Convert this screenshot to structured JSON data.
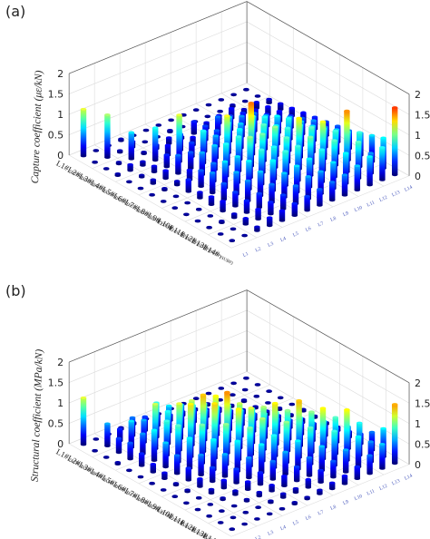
{
  "chart_data": [
    {
      "type": "bar3d",
      "panel_label": "(a)",
      "zlabel_left": "Capture coefficient (με/kN)",
      "zlabel_right": "Capture coefficient (με/kN)",
      "zlim": [
        0,
        2
      ],
      "zticks": [
        "0",
        "0.5",
        "1",
        "1.5",
        "2"
      ],
      "rows": [
        "L1#",
        "L2#",
        "L3#",
        "L4#",
        "L5#",
        "L6#",
        "L7#",
        "L8#",
        "L9#",
        "L10#",
        "L11#",
        "L12#",
        "L13#",
        "L14#"
      ],
      "row_sub": "(SUBP)",
      "columns": [
        "L1",
        "L2",
        "L3",
        "L4",
        "L5",
        "L6",
        "L7",
        "L8",
        "L9",
        "L10",
        "L11",
        "L12",
        "L13",
        "L14"
      ],
      "values": [
        [
          1.15,
          0.02,
          0.02,
          0.05,
          0.02,
          0.02,
          0.02,
          0.02,
          0.02,
          0.02,
          0.02,
          0.02,
          0.02,
          0.02
        ],
        [
          0.02,
          1.05,
          0.05,
          0.15,
          0.02,
          0.02,
          0.05,
          0.02,
          0.02,
          0.02,
          0.02,
          0.05,
          0.02,
          0.02
        ],
        [
          0.02,
          0.05,
          0.65,
          0.05,
          0.1,
          0.15,
          0.05,
          0.3,
          0.15,
          0.2,
          0.25,
          0.1,
          0.15,
          0.1
        ],
        [
          0.05,
          0.15,
          0.1,
          0.8,
          0.25,
          0.4,
          0.2,
          0.35,
          0.45,
          0.35,
          0.3,
          0.25,
          0.2,
          0.15
        ],
        [
          0.02,
          0.05,
          0.15,
          0.3,
          1.15,
          0.35,
          0.5,
          0.4,
          0.6,
          0.5,
          0.45,
          0.3,
          0.25,
          0.2
        ],
        [
          0.02,
          0.1,
          0.2,
          0.45,
          0.4,
          0.8,
          0.55,
          0.75,
          0.6,
          0.65,
          0.55,
          0.4,
          0.3,
          0.25
        ],
        [
          0.02,
          0.05,
          0.1,
          0.25,
          0.55,
          0.6,
          1.2,
          0.75,
          0.95,
          0.8,
          0.7,
          0.55,
          0.4,
          0.3
        ],
        [
          0.02,
          0.02,
          0.3,
          0.4,
          0.45,
          0.8,
          0.85,
          1.55,
          0.9,
          0.75,
          0.8,
          0.6,
          0.5,
          0.35
        ],
        [
          0.02,
          0.02,
          0.15,
          0.5,
          0.65,
          0.65,
          1.0,
          0.95,
          1.0,
          0.85,
          0.8,
          0.65,
          0.5,
          0.4
        ],
        [
          0.02,
          0.02,
          0.2,
          0.4,
          0.55,
          0.7,
          0.85,
          0.8,
          0.9,
          1.25,
          0.9,
          0.75,
          0.6,
          0.45
        ],
        [
          0.02,
          0.02,
          0.25,
          0.35,
          0.5,
          0.6,
          0.75,
          0.85,
          0.85,
          0.95,
          1.2,
          0.85,
          0.7,
          0.55
        ],
        [
          0.02,
          0.05,
          0.1,
          0.3,
          0.35,
          0.45,
          0.6,
          0.65,
          0.7,
          0.8,
          0.9,
          1.5,
          0.85,
          0.65
        ],
        [
          0.02,
          0.02,
          0.15,
          0.25,
          0.3,
          0.35,
          0.45,
          0.55,
          0.55,
          0.65,
          0.75,
          0.9,
          0.5,
          0.75
        ],
        [
          0.02,
          0.02,
          0.1,
          0.2,
          0.25,
          0.3,
          0.35,
          0.4,
          0.45,
          0.5,
          0.6,
          0.7,
          0.8,
          1.65
        ]
      ]
    },
    {
      "type": "bar3d",
      "panel_label": "(b)",
      "zlabel_left": "Structural coefficient (MPa/kN)",
      "zlabel_right": "Structural coefficient (MPa/kN)",
      "zlim": [
        0,
        2
      ],
      "zticks": [
        "0",
        "0.5",
        "1",
        "1.5",
        "2"
      ],
      "rows": [
        "L1#",
        "L2#",
        "L3#",
        "L4#",
        "L5#",
        "L6#",
        "L7#",
        "L8#",
        "L9#",
        "L10#",
        "L11#",
        "L12#",
        "L13#",
        "L14#"
      ],
      "row_sub": "(STRU)",
      "columns": [
        "L1",
        "L2",
        "L3",
        "L4",
        "L5",
        "L6",
        "L7",
        "L8",
        "L9",
        "L10",
        "L11",
        "L12",
        "L13",
        "L14"
      ],
      "values": [
        [
          1.15,
          0.02,
          0.02,
          0.05,
          0.05,
          0.02,
          0.02,
          0.02,
          0.02,
          0.02,
          0.02,
          0.02,
          0.02,
          0.02
        ],
        [
          0.02,
          0.55,
          0.3,
          0.45,
          0.35,
          0.25,
          0.15,
          0.1,
          0.05,
          0.05,
          0.02,
          0.02,
          0.02,
          0.02
        ],
        [
          0.02,
          0.35,
          0.65,
          0.55,
          0.85,
          0.65,
          0.55,
          0.3,
          0.2,
          0.1,
          0.05,
          0.05,
          0.02,
          0.02
        ],
        [
          0.05,
          0.4,
          0.5,
          1.1,
          0.8,
          0.85,
          0.7,
          0.45,
          0.35,
          0.2,
          0.1,
          0.05,
          0.02,
          0.02
        ],
        [
          0.02,
          0.3,
          0.75,
          0.85,
          1.15,
          1.1,
          0.9,
          0.7,
          0.5,
          0.35,
          0.15,
          0.1,
          0.05,
          0.02
        ],
        [
          0.02,
          0.2,
          0.6,
          0.9,
          1.3,
          1.4,
          1.25,
          0.9,
          0.65,
          0.45,
          0.25,
          0.15,
          0.05,
          0.05
        ],
        [
          0.02,
          0.15,
          0.45,
          0.75,
          0.95,
          1.35,
          1.5,
          1.1,
          0.85,
          0.6,
          0.35,
          0.2,
          0.1,
          0.05
        ],
        [
          0.02,
          0.05,
          0.3,
          0.5,
          0.75,
          1.0,
          1.25,
          1.15,
          1.05,
          0.8,
          0.5,
          0.3,
          0.15,
          0.05
        ],
        [
          0.02,
          0.05,
          0.2,
          0.35,
          0.55,
          0.75,
          0.95,
          1.05,
          1.3,
          1.0,
          0.7,
          0.45,
          0.25,
          0.1
        ],
        [
          0.02,
          0.02,
          0.1,
          0.2,
          0.35,
          0.5,
          0.7,
          0.8,
          1.0,
          1.4,
          1.0,
          0.65,
          0.35,
          0.15
        ],
        [
          0.02,
          0.02,
          0.05,
          0.1,
          0.2,
          0.3,
          0.45,
          0.55,
          0.7,
          0.9,
          1.25,
          0.9,
          0.55,
          0.25
        ],
        [
          0.02,
          0.02,
          0.02,
          0.05,
          0.1,
          0.15,
          0.25,
          0.35,
          0.45,
          0.6,
          0.85,
          1.25,
          0.8,
          0.45
        ],
        [
          0.02,
          0.02,
          0.02,
          0.02,
          0.05,
          0.1,
          0.1,
          0.2,
          0.3,
          0.4,
          0.55,
          0.75,
          0.5,
          0.7
        ],
        [
          0.02,
          0.02,
          0.02,
          0.02,
          0.02,
          0.05,
          0.05,
          0.1,
          0.15,
          0.2,
          0.3,
          0.45,
          0.6,
          1.45
        ]
      ]
    }
  ]
}
